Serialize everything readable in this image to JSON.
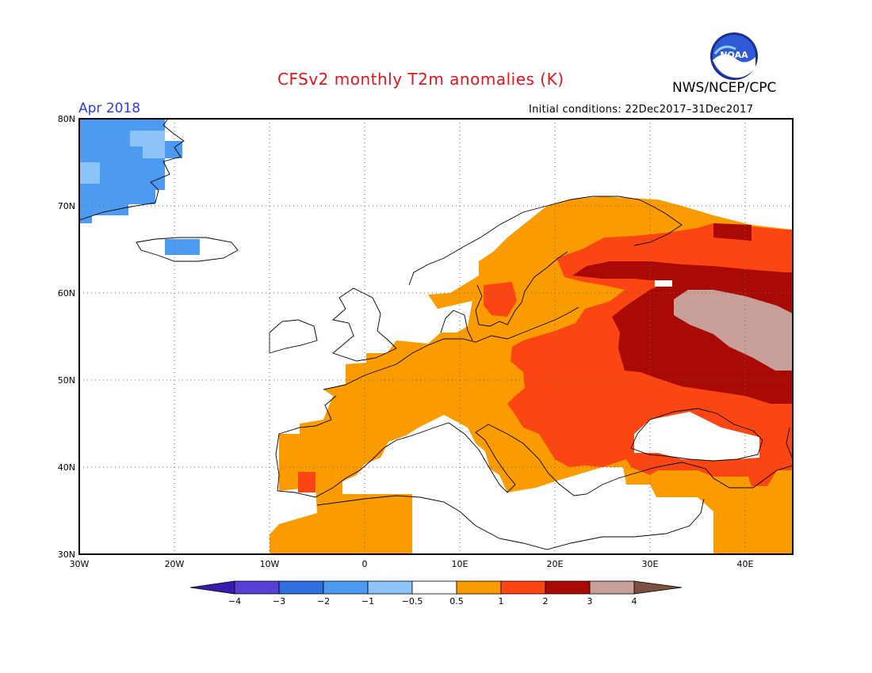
{
  "header": {
    "title": "CFSv2 monthly T2m anomalies (K)",
    "agency": "NWS/NCEP/CPC",
    "period": "Apr 2018",
    "initial_conditions": "Initial conditions: 22Dec2017–31Dec2017",
    "logo_text": "NOAA"
  },
  "map": {
    "lon_range": [
      -30,
      45
    ],
    "lat_range": [
      30,
      80
    ],
    "lat_ticks": [
      "80N",
      "70N",
      "60N",
      "50N",
      "40N",
      "30N"
    ],
    "lon_ticks": [
      "30W",
      "20W",
      "10W",
      "0",
      "10E",
      "20E",
      "30E",
      "40E"
    ]
  },
  "colorbar": {
    "labels": [
      "−4",
      "−3",
      "−2",
      "−1",
      "−0.5",
      "0.5",
      "1",
      "2",
      "3",
      "4"
    ],
    "colors": [
      "#3a1bb0",
      "#5a3fd6",
      "#2f6fdf",
      "#4c9bf0",
      "#8cc4f8",
      "#ffffff",
      "#fa9c00",
      "#fb4513",
      "#a90a05",
      "#c8a099",
      "#7b5040"
    ]
  }
}
